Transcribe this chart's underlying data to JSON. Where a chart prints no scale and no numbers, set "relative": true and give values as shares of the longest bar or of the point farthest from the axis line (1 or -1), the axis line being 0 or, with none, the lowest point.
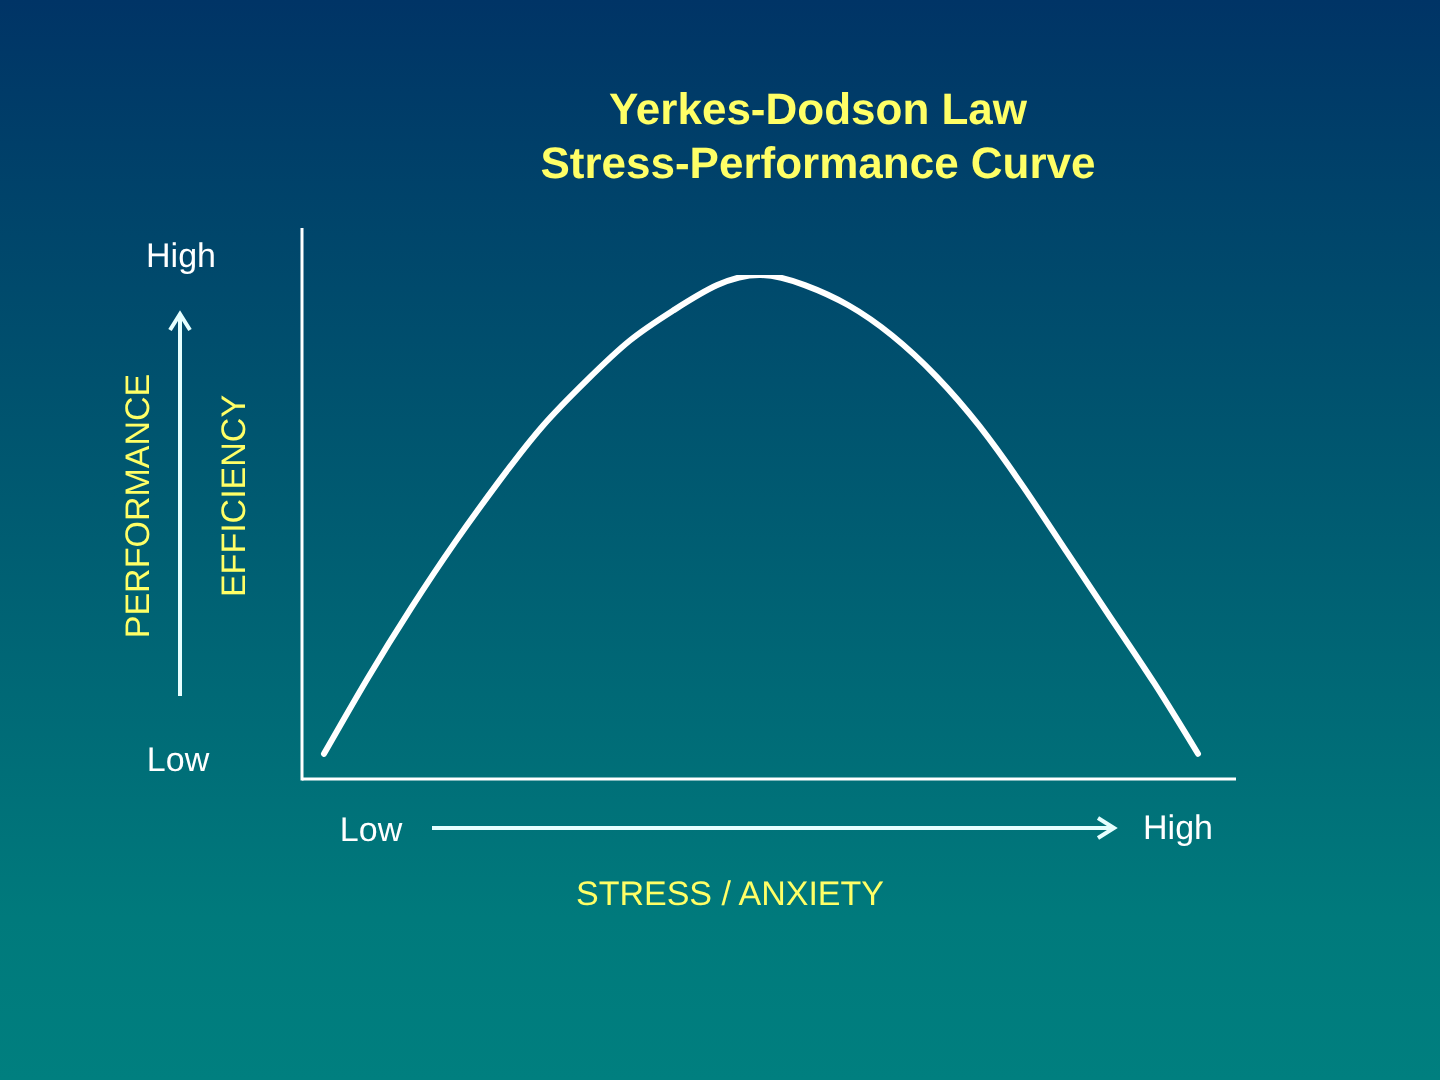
{
  "chart_data": {
    "type": "line",
    "title": "Yerkes-Dodson Law\nStress-Performance Curve",
    "xlabel": "STRESS / ANXIETY",
    "ylabel": "PERFORMANCE",
    "annotations": [
      "High",
      "Low",
      "EFFICIENCY",
      "Low",
      "High"
    ],
    "categories": [
      null,
      null,
      null,
      null,
      null,
      null,
      null,
      null,
      null,
      null,
      null,
      null,
      null,
      null,
      null,
      null,
      null,
      null,
      null,
      null,
      null
    ],
    "values": [
      0.05,
      0.2,
      0.34,
      0.47,
      0.59,
      0.7,
      0.79,
      0.87,
      0.93,
      0.98,
      1,
      0.98,
      0.94,
      0.88,
      0.8,
      0.7,
      0.58,
      0.45,
      0.32,
      0.19,
      0.05
    ],
    "color": "#ffffff",
    "relative": true,
    "marker": "none"
  }
}
